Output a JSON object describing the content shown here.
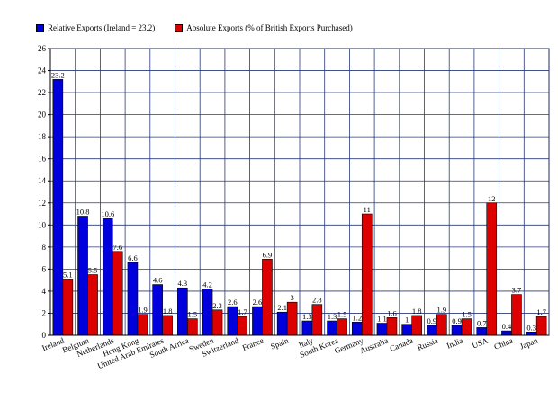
{
  "chart_data": {
    "type": "bar",
    "title": "",
    "xlabel": "",
    "ylabel": "",
    "ylim": [
      0,
      26
    ],
    "yticks": [
      0,
      2,
      4,
      6,
      8,
      10,
      12,
      14,
      16,
      18,
      20,
      22,
      24,
      26
    ],
    "grid": true,
    "legend_position": "top-left",
    "categories": [
      "Ireland",
      "Belgium",
      "Netherlands",
      "Hong Kong",
      "United Arab Emirates",
      "South Africa",
      "Sweden",
      "Switzerland",
      "France",
      "Spain",
      "Italy",
      "South Korea",
      "Germany",
      "Australia",
      "Canada",
      "Russia",
      "India",
      "USA",
      "China",
      "Japan"
    ],
    "series": [
      {
        "name": "Relative Exports (Ireland = 23.2)",
        "color": "#0000dd",
        "values": [
          23.2,
          10.8,
          10.6,
          6.6,
          4.6,
          4.3,
          4.2,
          2.6,
          2.6,
          2.1,
          1.3,
          1.3,
          1.2,
          1.1,
          1,
          0.9,
          0.9,
          0.7,
          0.4,
          0.3
        ],
        "labels": [
          "23.2",
          "10.8",
          "10.6",
          "6.6",
          "4.6",
          "4.3",
          "4.2",
          "2.6",
          "2.6",
          "2.1",
          "1.3",
          "1.3",
          "1.2",
          "1.1",
          "1",
          "0.9",
          "0.9",
          "0.7",
          "0.4",
          "0.3"
        ]
      },
      {
        "name": "Absolute Exports (% of British Exports Purchased)",
        "color": "#dd0000",
        "values": [
          5.1,
          5.5,
          7.6,
          1.9,
          1.8,
          1.5,
          2.3,
          1.7,
          6.9,
          3,
          2.8,
          1.5,
          11,
          1.6,
          1.8,
          1.9,
          1.5,
          12,
          3.7,
          1.7
        ],
        "labels": [
          "5.1",
          "5.5",
          "7.6",
          "1.9",
          "1.8",
          "1.5",
          "2.3",
          "1.7",
          "6.9",
          "3",
          "2.8",
          "1.5",
          "11",
          "1.6",
          "1.8",
          "1.9",
          "1.5",
          "12",
          "3.7",
          "1.7"
        ]
      }
    ]
  }
}
